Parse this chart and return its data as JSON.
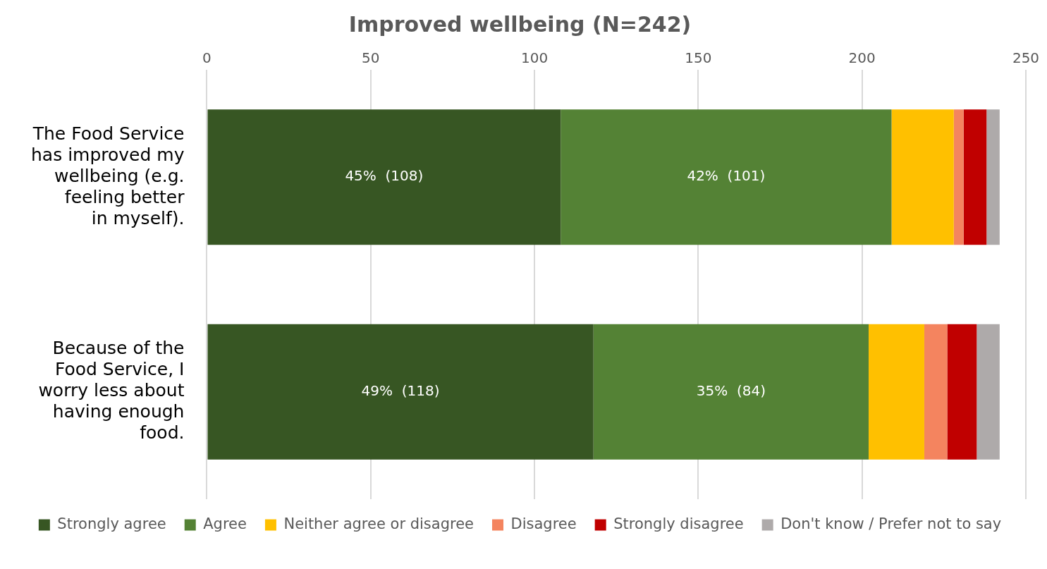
{
  "chart_data": {
    "type": "bar",
    "orientation": "horizontal",
    "stacked": true,
    "title": "Improved wellbeing (N=242)",
    "categories": [
      "The Food Service has improved my wellbeing (e.g. feeling better in myself).",
      "Because of the Food Service, I worry less about having enough food."
    ],
    "series": [
      {
        "name": "Strongly agree",
        "color": "#375623",
        "values": [
          108,
          118
        ],
        "value_labels": [
          "45%  (108)",
          "49%  (118)"
        ]
      },
      {
        "name": "Agree",
        "color": "#548235",
        "values": [
          101,
          84
        ],
        "value_labels": [
          "42%  (101)",
          "35%  (84)"
        ]
      },
      {
        "name": "Neither agree or disagree",
        "color": "#ffc000",
        "values": [
          19,
          17
        ]
      },
      {
        "name": "Disagree",
        "color": "#f4845f",
        "values": [
          3,
          7
        ]
      },
      {
        "name": "Strongly disagree",
        "color": "#c00000",
        "values": [
          7,
          9
        ]
      },
      {
        "name": "Don't know / Prefer not to say",
        "color": "#aeaaaa",
        "values": [
          4,
          7
        ]
      }
    ],
    "xlim": [
      0,
      250
    ],
    "xticks": [
      0,
      50,
      100,
      150,
      200,
      250
    ],
    "grid": "x",
    "legend": "bottom"
  }
}
